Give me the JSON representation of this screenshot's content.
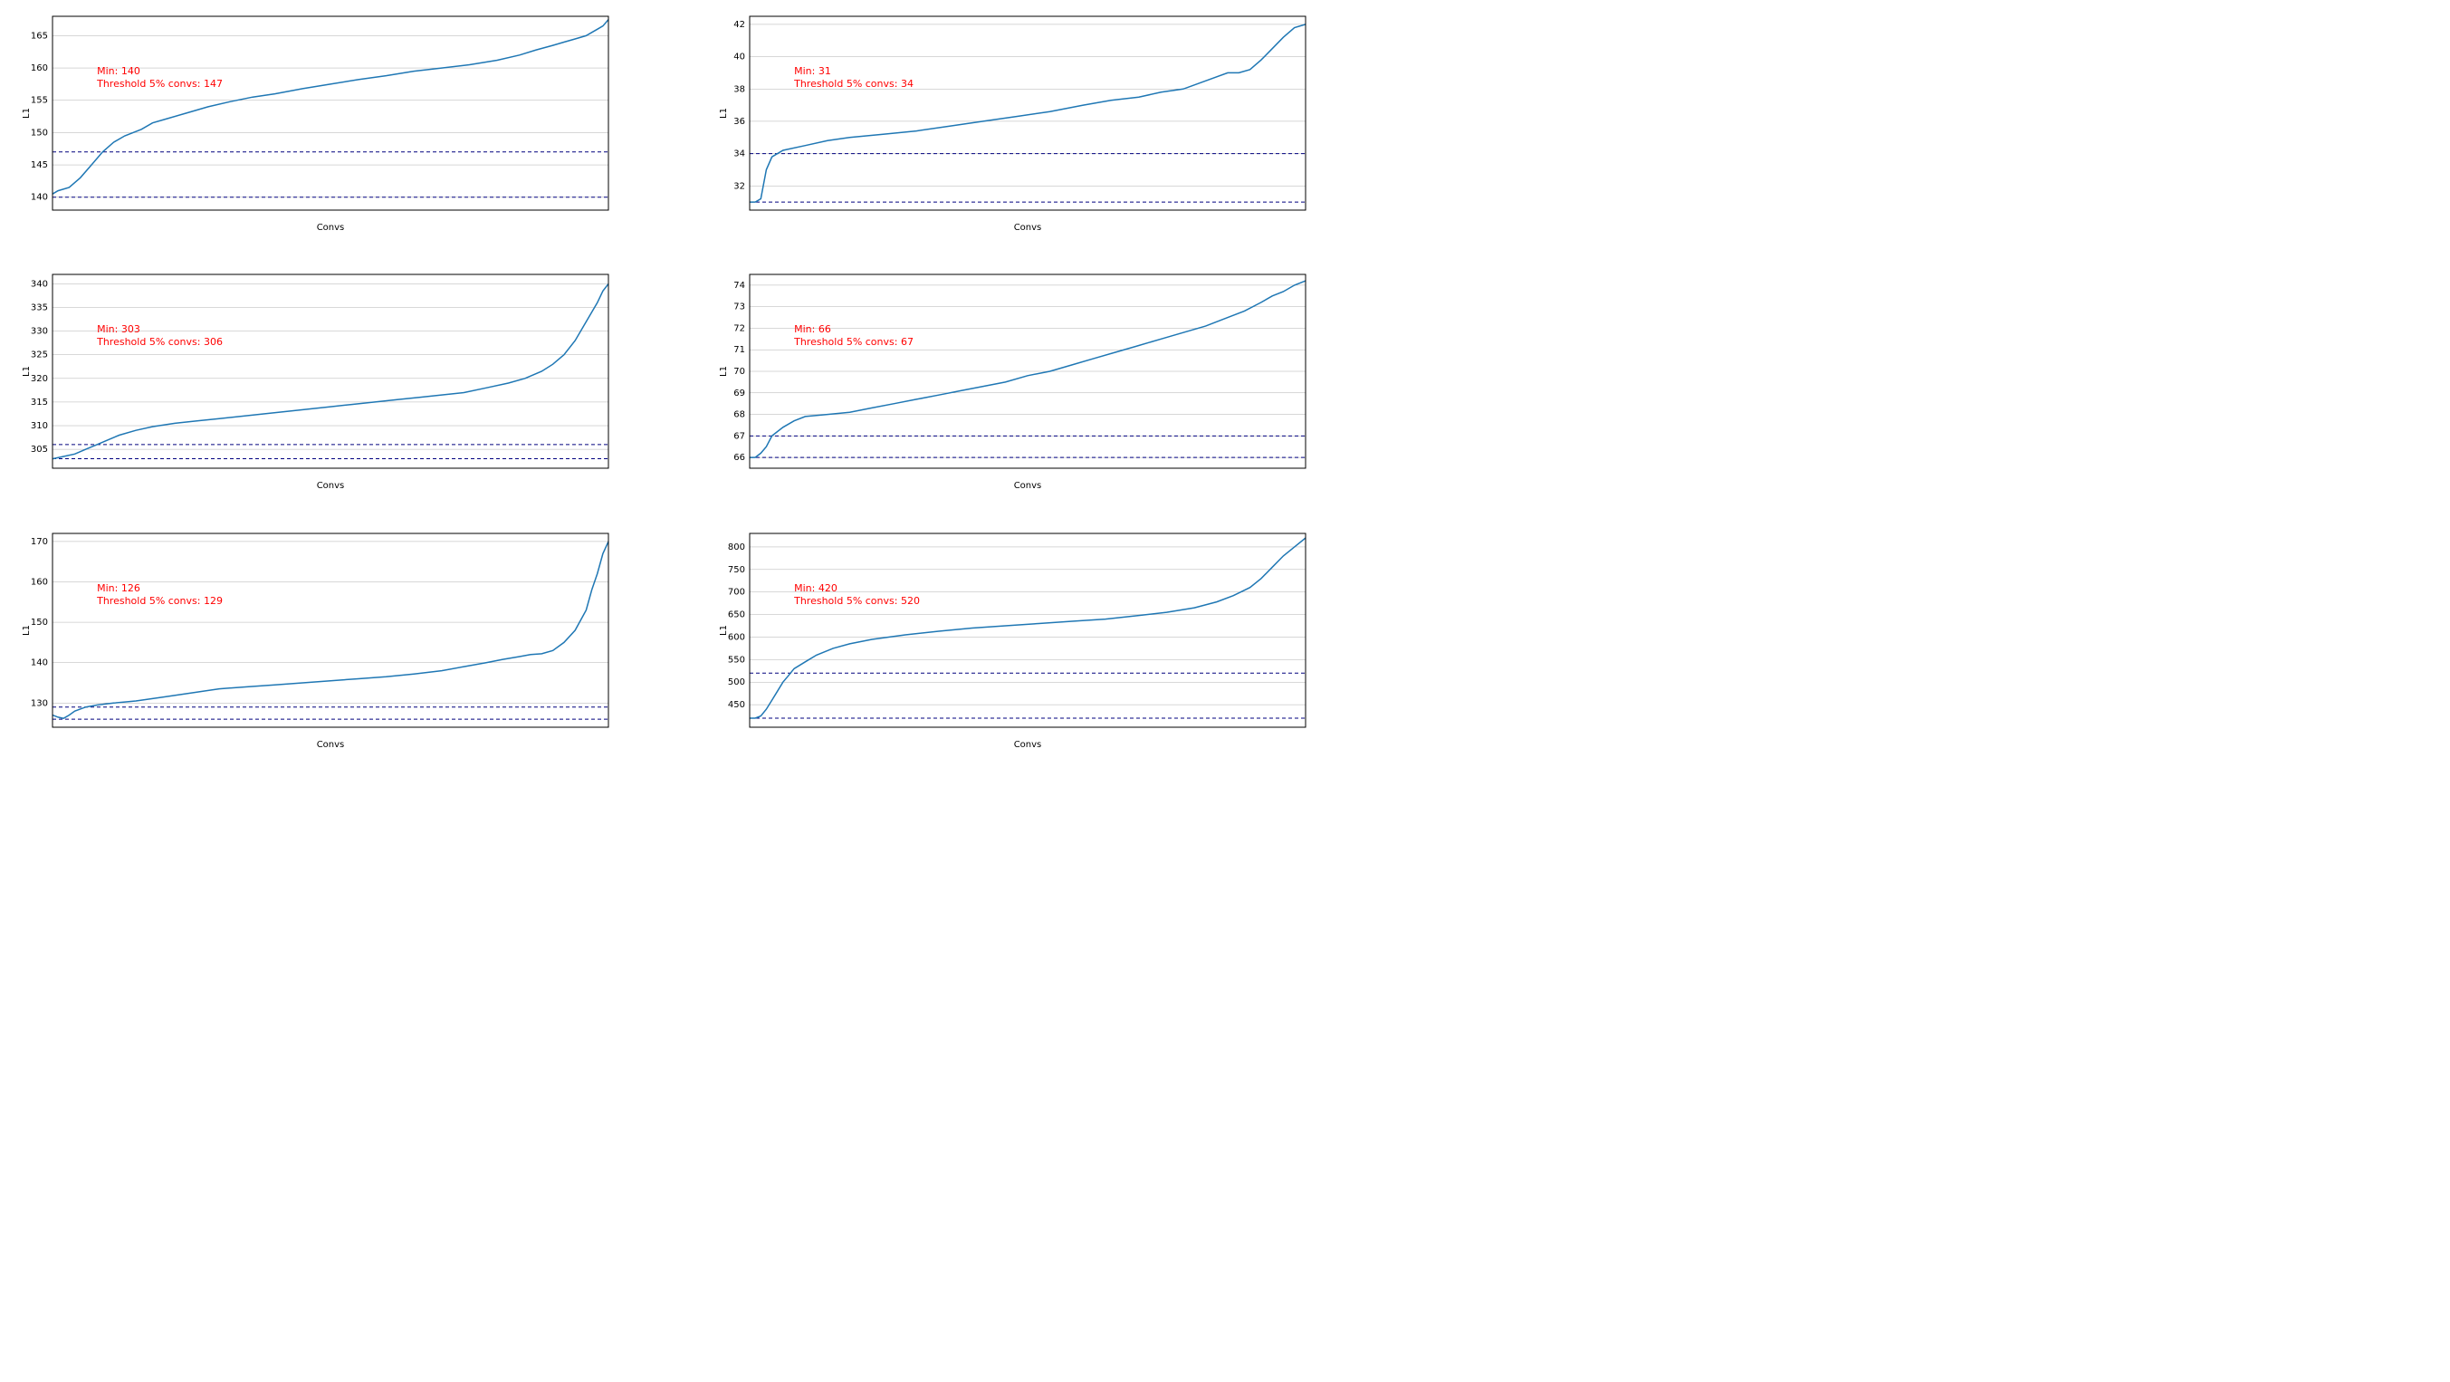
{
  "global": {
    "xlabel": "Convs",
    "ylabel": "L1",
    "line_color": "#1f77b4",
    "thresh_color": "#00007f",
    "annot_color": "#ff0000",
    "grid_color": "#b0b0b0",
    "border_color": "#000000",
    "background": "#ffffff",
    "annot_fontsize": 11,
    "tick_fontsize": 10,
    "label_fontsize": 10,
    "line_width": 1.5,
    "dash": "4,3"
  },
  "panels": [
    {
      "id": "p0",
      "min": 140,
      "thresh": 147,
      "annot_min": "Min: 140",
      "annot_thr": "Threshold 5% convs: 147",
      "ylim": [
        138,
        168
      ],
      "yticks": [
        140,
        145,
        150,
        155,
        160,
        165
      ],
      "xlim": [
        0,
        100
      ],
      "curve": [
        [
          0,
          140.5
        ],
        [
          1,
          141
        ],
        [
          3,
          141.5
        ],
        [
          5,
          143
        ],
        [
          7,
          145
        ],
        [
          9,
          147
        ],
        [
          11,
          148.5
        ],
        [
          13,
          149.5
        ],
        [
          16,
          150.5
        ],
        [
          18,
          151.5
        ],
        [
          20,
          152
        ],
        [
          24,
          153
        ],
        [
          28,
          154
        ],
        [
          32,
          154.8
        ],
        [
          36,
          155.5
        ],
        [
          40,
          156
        ],
        [
          45,
          156.8
        ],
        [
          50,
          157.5
        ],
        [
          55,
          158.2
        ],
        [
          60,
          158.8
        ],
        [
          65,
          159.5
        ],
        [
          70,
          160
        ],
        [
          75,
          160.5
        ],
        [
          80,
          161.2
        ],
        [
          84,
          162
        ],
        [
          87,
          162.8
        ],
        [
          90,
          163.5
        ],
        [
          92,
          164
        ],
        [
          94,
          164.5
        ],
        [
          96,
          165
        ],
        [
          97,
          165.5
        ],
        [
          98,
          166
        ],
        [
          99,
          166.5
        ],
        [
          100,
          167.5
        ]
      ]
    },
    {
      "id": "p1",
      "min": 31,
      "thresh": 34,
      "annot_min": "Min: 31",
      "annot_thr": "Threshold 5% convs: 34",
      "ylim": [
        30.5,
        42.5
      ],
      "yticks": [
        32,
        34,
        36,
        38,
        40,
        42
      ],
      "xlim": [
        0,
        100
      ],
      "curve": [
        [
          0,
          31
        ],
        [
          1,
          31
        ],
        [
          2,
          31.2
        ],
        [
          3,
          33
        ],
        [
          4,
          33.8
        ],
        [
          6,
          34.2
        ],
        [
          10,
          34.5
        ],
        [
          14,
          34.8
        ],
        [
          18,
          35
        ],
        [
          24,
          35.2
        ],
        [
          30,
          35.4
        ],
        [
          36,
          35.7
        ],
        [
          42,
          36
        ],
        [
          48,
          36.3
        ],
        [
          54,
          36.6
        ],
        [
          60,
          37
        ],
        [
          65,
          37.3
        ],
        [
          70,
          37.5
        ],
        [
          74,
          37.8
        ],
        [
          78,
          38
        ],
        [
          82,
          38.5
        ],
        [
          86,
          39
        ],
        [
          88,
          39
        ],
        [
          90,
          39.2
        ],
        [
          92,
          39.8
        ],
        [
          94,
          40.5
        ],
        [
          96,
          41.2
        ],
        [
          98,
          41.8
        ],
        [
          100,
          42
        ]
      ]
    },
    {
      "id": "p2",
      "min": 303,
      "thresh": 306,
      "annot_min": "Min: 303",
      "annot_thr": "Threshold 5% convs: 306",
      "ylim": [
        301,
        342
      ],
      "yticks": [
        305,
        310,
        315,
        320,
        325,
        330,
        335,
        340
      ],
      "xlim": [
        0,
        100
      ],
      "curve": [
        [
          0,
          303
        ],
        [
          2,
          303.5
        ],
        [
          4,
          304
        ],
        [
          6,
          305
        ],
        [
          8,
          306
        ],
        [
          10,
          307
        ],
        [
          12,
          308
        ],
        [
          15,
          309
        ],
        [
          18,
          309.8
        ],
        [
          22,
          310.5
        ],
        [
          26,
          311
        ],
        [
          30,
          311.5
        ],
        [
          34,
          312
        ],
        [
          38,
          312.5
        ],
        [
          42,
          313
        ],
        [
          46,
          313.5
        ],
        [
          50,
          314
        ],
        [
          54,
          314.5
        ],
        [
          58,
          315
        ],
        [
          62,
          315.5
        ],
        [
          66,
          316
        ],
        [
          70,
          316.5
        ],
        [
          74,
          317
        ],
        [
          78,
          318
        ],
        [
          82,
          319
        ],
        [
          85,
          320
        ],
        [
          88,
          321.5
        ],
        [
          90,
          323
        ],
        [
          92,
          325
        ],
        [
          94,
          328
        ],
        [
          96,
          332
        ],
        [
          98,
          336
        ],
        [
          99,
          338.5
        ],
        [
          100,
          340
        ]
      ]
    },
    {
      "id": "p3",
      "min": 66,
      "thresh": 67,
      "annot_min": "Min: 66",
      "annot_thr": "Threshold 5% convs: 67",
      "ylim": [
        65.5,
        74.5
      ],
      "yticks": [
        66,
        67,
        68,
        69,
        70,
        71,
        72,
        73,
        74
      ],
      "xlim": [
        0,
        100
      ],
      "curve": [
        [
          0,
          66
        ],
        [
          1,
          66
        ],
        [
          2,
          66.2
        ],
        [
          3,
          66.5
        ],
        [
          4,
          67
        ],
        [
          6,
          67.4
        ],
        [
          8,
          67.7
        ],
        [
          10,
          67.9
        ],
        [
          14,
          68
        ],
        [
          18,
          68.1
        ],
        [
          22,
          68.3
        ],
        [
          26,
          68.5
        ],
        [
          30,
          68.7
        ],
        [
          34,
          68.9
        ],
        [
          38,
          69.1
        ],
        [
          42,
          69.3
        ],
        [
          46,
          69.5
        ],
        [
          50,
          69.8
        ],
        [
          54,
          70
        ],
        [
          58,
          70.3
        ],
        [
          62,
          70.6
        ],
        [
          66,
          70.9
        ],
        [
          70,
          71.2
        ],
        [
          74,
          71.5
        ],
        [
          78,
          71.8
        ],
        [
          82,
          72.1
        ],
        [
          86,
          72.5
        ],
        [
          89,
          72.8
        ],
        [
          92,
          73.2
        ],
        [
          94,
          73.5
        ],
        [
          96,
          73.7
        ],
        [
          98,
          74
        ],
        [
          100,
          74.2
        ]
      ]
    },
    {
      "id": "p4",
      "min": 126,
      "thresh": 129,
      "annot_min": "Min: 126",
      "annot_thr": "Threshold 5% convs: 129",
      "ylim": [
        124,
        172
      ],
      "yticks": [
        130,
        140,
        150,
        160,
        170
      ],
      "xlim": [
        0,
        100
      ],
      "curve": [
        [
          0,
          127
        ],
        [
          1,
          126.5
        ],
        [
          2,
          126.2
        ],
        [
          3,
          127
        ],
        [
          4,
          128
        ],
        [
          6,
          129
        ],
        [
          8,
          129.5
        ],
        [
          11,
          130
        ],
        [
          15,
          130.5
        ],
        [
          20,
          131.5
        ],
        [
          25,
          132.5
        ],
        [
          30,
          133.5
        ],
        [
          35,
          134
        ],
        [
          40,
          134.5
        ],
        [
          45,
          135
        ],
        [
          50,
          135.5
        ],
        [
          55,
          136
        ],
        [
          60,
          136.5
        ],
        [
          65,
          137.2
        ],
        [
          70,
          138
        ],
        [
          74,
          139
        ],
        [
          78,
          140
        ],
        [
          81,
          140.8
        ],
        [
          84,
          141.5
        ],
        [
          86,
          142
        ],
        [
          88,
          142.2
        ],
        [
          90,
          143
        ],
        [
          92,
          145
        ],
        [
          94,
          148
        ],
        [
          96,
          153
        ],
        [
          97,
          158
        ],
        [
          98,
          162
        ],
        [
          99,
          167
        ],
        [
          100,
          170
        ]
      ]
    },
    {
      "id": "p5",
      "min": 420,
      "thresh": 520,
      "annot_min": "Min: 420",
      "annot_thr": "Threshold 5% convs: 520",
      "ylim": [
        400,
        830
      ],
      "yticks": [
        450,
        500,
        550,
        600,
        650,
        700,
        750,
        800
      ],
      "xlim": [
        0,
        100
      ],
      "curve": [
        [
          0,
          420
        ],
        [
          1,
          420
        ],
        [
          2,
          425
        ],
        [
          3,
          440
        ],
        [
          4,
          460
        ],
        [
          5,
          480
        ],
        [
          6,
          500
        ],
        [
          7,
          515
        ],
        [
          8,
          530
        ],
        [
          10,
          545
        ],
        [
          12,
          560
        ],
        [
          15,
          575
        ],
        [
          18,
          585
        ],
        [
          22,
          595
        ],
        [
          28,
          605
        ],
        [
          34,
          613
        ],
        [
          40,
          620
        ],
        [
          46,
          625
        ],
        [
          52,
          630
        ],
        [
          58,
          635
        ],
        [
          64,
          640
        ],
        [
          70,
          648
        ],
        [
          75,
          655
        ],
        [
          80,
          665
        ],
        [
          84,
          678
        ],
        [
          87,
          692
        ],
        [
          90,
          710
        ],
        [
          92,
          730
        ],
        [
          94,
          755
        ],
        [
          96,
          780
        ],
        [
          98,
          800
        ],
        [
          100,
          820
        ]
      ]
    }
  ]
}
